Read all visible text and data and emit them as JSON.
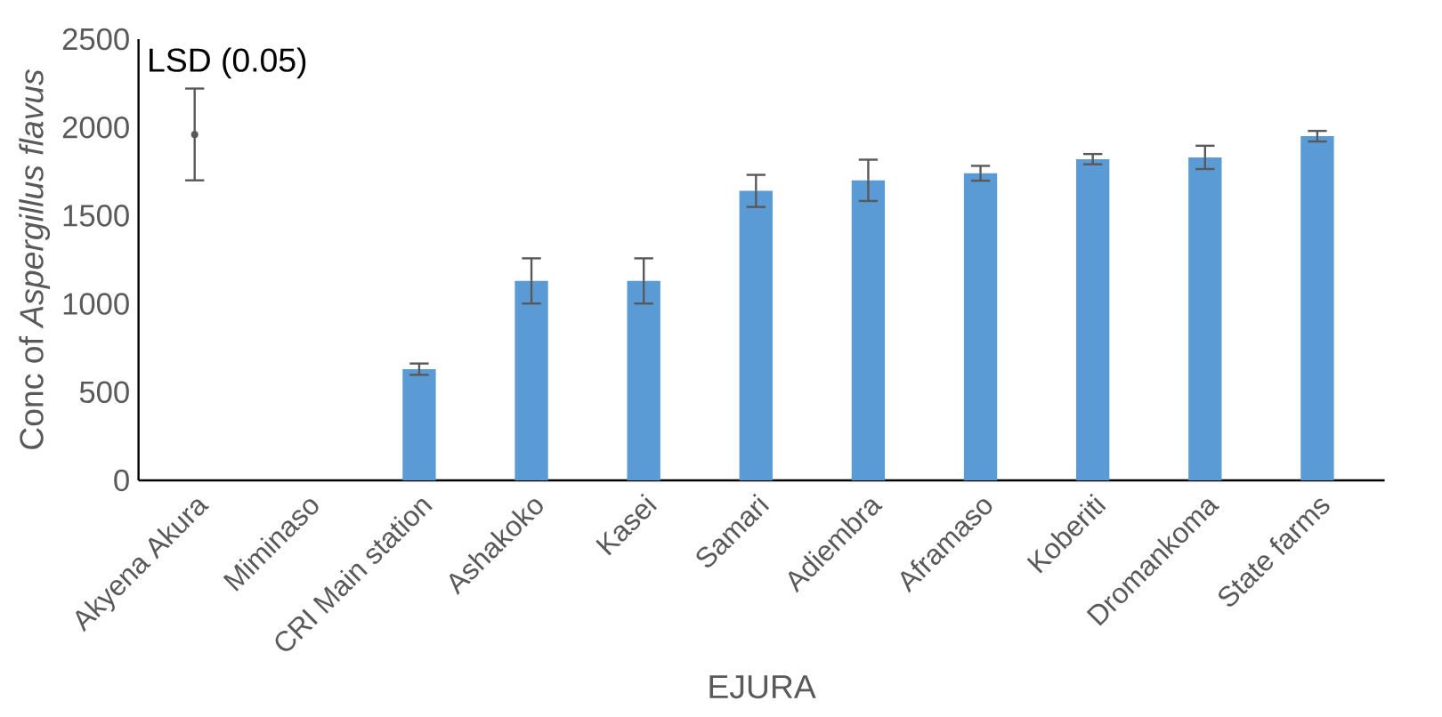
{
  "chart_data": {
    "type": "bar",
    "xlabel": "EJURA",
    "ylabel": "Conc of *Aspergillus flavus*",
    "categories": [
      "Akyena Akura",
      "Miminaso",
      "CRI Main station",
      "Ashakoko",
      "Kasei",
      "Samari",
      "Adiembra",
      "Aframaso",
      "Koberiti",
      "Dromankoma",
      "State farms"
    ],
    "series": [
      {
        "color": "#5b9bd5",
        "values": [
          0,
          0,
          630,
          1130,
          1130,
          1640,
          1700,
          1740,
          1820,
          1830,
          1950
        ],
        "errors": [
          null,
          null,
          32,
          128,
          128,
          91,
          117,
          42,
          29,
          66,
          30
        ]
      },
      {
        "type": "scatter",
        "color": "#595959",
        "values": [
          1960,
          null,
          null,
          null,
          null,
          null,
          null,
          null,
          null,
          null,
          null
        ],
        "errors": [
          260,
          null,
          null,
          null,
          null,
          null,
          null,
          null,
          null,
          null,
          null
        ]
      }
    ],
    "marker": "circle",
    "ylim": [
      0,
      2500
    ],
    "yticks": [
      0,
      500,
      1000,
      1500,
      2000,
      2500
    ],
    "annotations": [
      "LSD (0.05)"
    ]
  }
}
